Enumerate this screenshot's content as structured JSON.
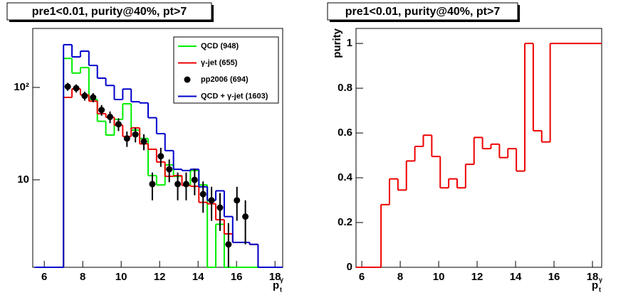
{
  "chart_data": [
    {
      "type": "histogram",
      "title": "pre1<0.01, purity@40%, pt>7",
      "x_label": "p",
      "x_label_sub": "t",
      "x_label_sup": "γ",
      "log_y": true,
      "legend": "top-right",
      "xlim": [
        5.4,
        18.4
      ],
      "ylim": [
        1.13,
        435
      ],
      "xticks": [
        6,
        8,
        10,
        12,
        14,
        16,
        18
      ],
      "yticks": [
        10,
        {
          "value": 100,
          "label": "10²"
        }
      ],
      "bins": [
        5.5,
        7.0,
        7.44,
        7.88,
        8.32,
        8.76,
        9.2,
        9.64,
        10.08,
        10.52,
        10.96,
        11.4,
        11.84,
        12.28,
        12.72,
        13.16,
        13.6,
        14.04,
        14.48,
        14.92,
        15.36,
        15.8,
        16.24,
        16.68,
        17.12,
        18.5
      ],
      "series": [
        {
          "name": "QCD (948)",
          "color": "#00ee00",
          "values": [
            0,
            206,
            143,
            164,
            74,
            43,
            30.5,
            45,
            66.5,
            34.5,
            28,
            11.1,
            8.8,
            14.5,
            10.9,
            8.7,
            12.6,
            8.8,
            0,
            3.3,
            0,
            0,
            0,
            0,
            0
          ]
        },
        {
          "name": "γ-jet (655)",
          "color": "#ee0000",
          "values": [
            0,
            78,
            96.5,
            83,
            71,
            52,
            47.5,
            39,
            29.5,
            36.5,
            24.5,
            21.4,
            15.6,
            10.9,
            11.1,
            8.7,
            8.5,
            5.7,
            5.5,
            3.7,
            2.6,
            2.1,
            2.1,
            2.0,
            0
          ]
        },
        {
          "name": "QCD + γ-jet (1603)",
          "color": "#0000cc",
          "values": [
            0,
            290,
            214,
            247,
            173,
            126,
            105,
            74,
            96,
            70,
            68,
            47,
            31.6,
            20.7,
            13,
            12.6,
            13,
            8.4,
            6,
            7.6,
            4,
            2.1,
            2.1,
            2.0,
            0
          ]
        }
      ],
      "points": {
        "name": "pp2006 (694)",
        "color": "#000000",
        "x": [
          7.22,
          7.66,
          8.1,
          8.54,
          8.98,
          9.42,
          9.86,
          10.3,
          10.74,
          11.18,
          11.62,
          12.06,
          12.5,
          12.94,
          13.38,
          13.82,
          14.26,
          14.7,
          15.14,
          15.58,
          16.02,
          16.46
        ],
        "values": [
          102,
          98,
          81,
          78,
          57,
          48,
          40,
          28,
          31,
          26,
          9,
          18,
          13,
          9,
          9,
          10,
          7,
          6,
          5,
          2,
          6,
          4
        ],
        "errors": [
          10.1,
          9.9,
          9,
          8.8,
          7.5,
          6.9,
          6.3,
          5.3,
          5.6,
          5.1,
          3,
          4.2,
          3.6,
          3,
          3,
          3.2,
          2.6,
          2.4,
          2.2,
          1.4,
          2.4,
          2
        ]
      }
    },
    {
      "type": "histogram",
      "title": "pre1<0.01, purity@40%, pt>7",
      "x_label": "p",
      "x_label_sub": "t",
      "x_label_sup": "γ",
      "y_label": "purity",
      "log_y": false,
      "xlim": [
        5.7,
        18.48
      ],
      "ylim": [
        0,
        1.067
      ],
      "xticks": [
        6,
        8,
        10,
        12,
        14,
        16,
        18
      ],
      "yticks": [
        0,
        0.2,
        0.4,
        0.6,
        0.8,
        1
      ],
      "bins": [
        5.5,
        7.0,
        7.44,
        7.88,
        8.32,
        8.76,
        9.2,
        9.64,
        10.08,
        10.52,
        10.96,
        11.4,
        11.84,
        12.28,
        12.72,
        13.16,
        13.6,
        14.04,
        14.48,
        14.92,
        15.36,
        15.8,
        18.5
      ],
      "series": [
        {
          "color": "#ee0000",
          "values": [
            0,
            0.28,
            0.395,
            0.345,
            0.475,
            0.54,
            0.59,
            0.495,
            0.355,
            0.395,
            0.355,
            0.46,
            0.58,
            0.53,
            0.55,
            0.49,
            0.53,
            0.43,
            1.0,
            0.61,
            0.56,
            1.0
          ]
        }
      ]
    }
  ]
}
